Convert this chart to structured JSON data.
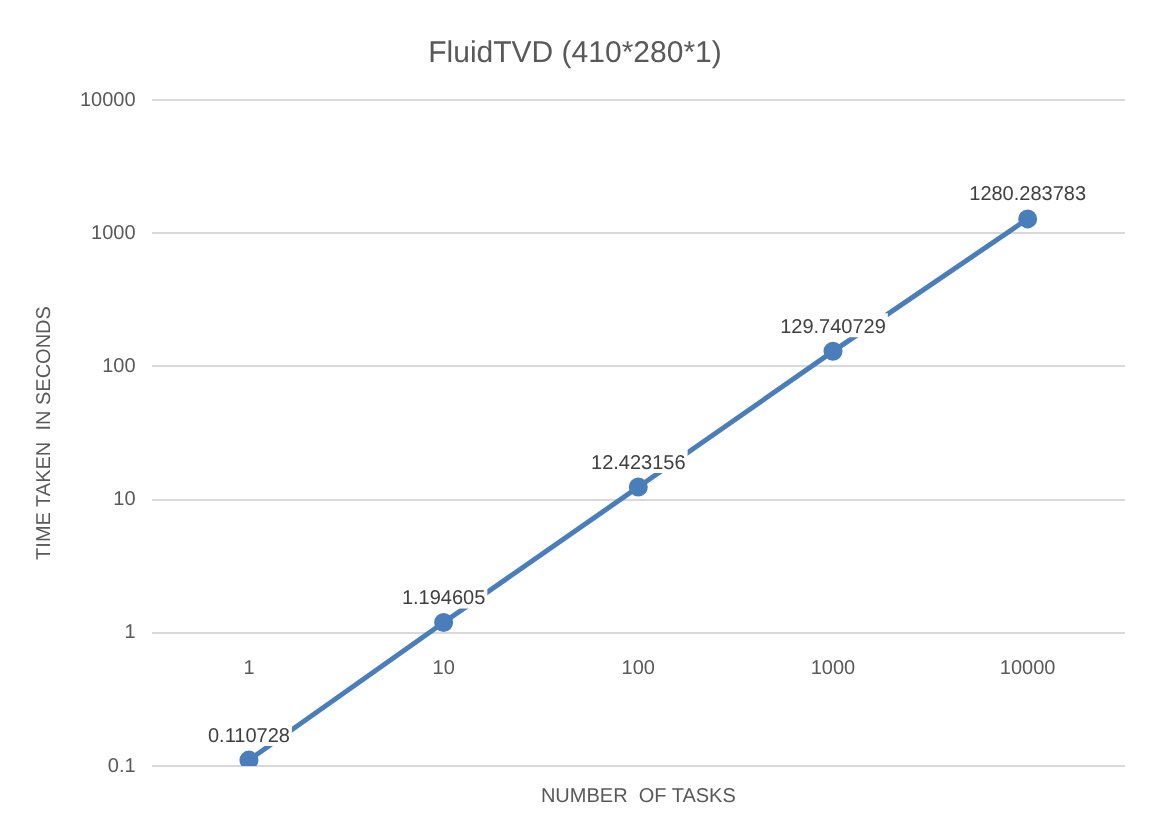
{
  "chart_data": {
    "type": "line",
    "title": "FluidTVD (410*280*1)",
    "xlabel": "NUMBER  OF TASKS",
    "ylabel": "TIME TAKEN  IN SECONDS",
    "categories": [
      "1",
      "10",
      "100",
      "1000",
      "10000"
    ],
    "series": [
      {
        "color": "#4a7ebb",
        "values": [
          0.110728,
          1.194605,
          12.423156,
          129.740729,
          1280.283783
        ]
      }
    ],
    "log": "y",
    "ylim": [
      0.1,
      10000
    ],
    "yticks": [
      0.1,
      1,
      10,
      100,
      1000,
      10000
    ],
    "grid": "y",
    "legend": false,
    "marker": "circle",
    "line_style": "solid",
    "data_labels": true
  }
}
